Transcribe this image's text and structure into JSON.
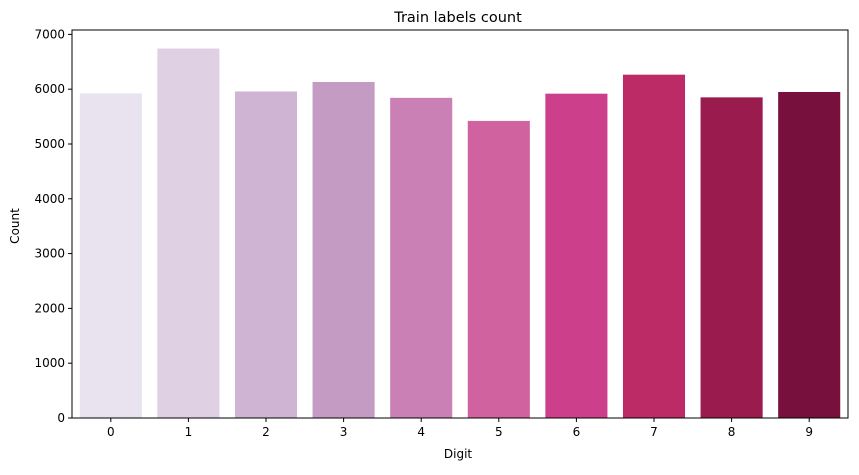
{
  "chart_data": {
    "type": "bar",
    "title": "Train labels count",
    "xlabel": "Digit",
    "ylabel": "Count",
    "categories": [
      "0",
      "1",
      "2",
      "3",
      "4",
      "5",
      "6",
      "7",
      "8",
      "9"
    ],
    "values": [
      5923,
      6742,
      5958,
      6131,
      5842,
      5421,
      5918,
      6265,
      5851,
      5949
    ],
    "colors": [
      "#e8e3ee",
      "#dfd0e3",
      "#d0b4d3",
      "#c49bc3",
      "#ca7fb5",
      "#d062a0",
      "#cc3f8b",
      "#bd2b67",
      "#9a1c4e",
      "#77103c"
    ],
    "ylim": [
      0,
      7080
    ],
    "yticks": [
      0,
      1000,
      2000,
      3000,
      4000,
      5000,
      6000,
      7000
    ],
    "grid": false,
    "legend": false
  }
}
